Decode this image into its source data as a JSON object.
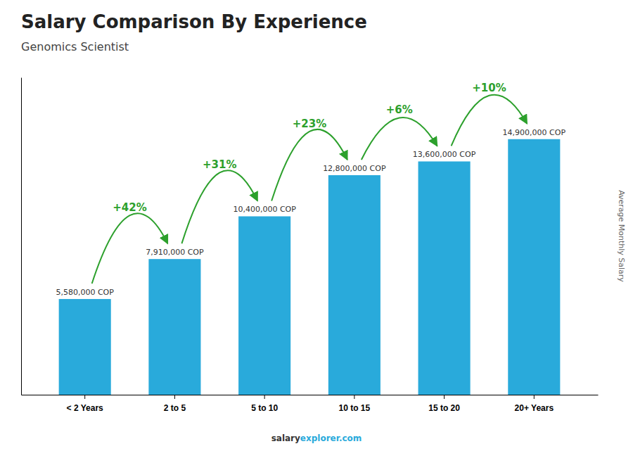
{
  "chart_data": {
    "type": "bar",
    "title": "Salary Comparison By Experience",
    "subtitle": "Genomics Scientist",
    "ylabel": "Average Monthly Salary",
    "categories": [
      "< 2 Years",
      "2 to 5",
      "5 to 10",
      "10 to 15",
      "15 to 20",
      "20+ Years"
    ],
    "values": [
      5580000,
      7910000,
      10400000,
      12800000,
      13600000,
      14900000
    ],
    "value_labels": [
      "5,580,000 COP",
      "7,910,000 COP",
      "10,400,000 COP",
      "12,800,000 COP",
      "13,600,000 COP",
      "14,900,000 COP"
    ],
    "data_labels": true,
    "annotations": [
      "+42%",
      "+31%",
      "+23%",
      "+6%",
      "+10%"
    ],
    "footer": [
      "salary",
      "explorer.com"
    ],
    "color": "#29aadb",
    "ylim": [
      0,
      18500000
    ],
    "yticks": [],
    "tick_labels": "x",
    "grid": false
  }
}
